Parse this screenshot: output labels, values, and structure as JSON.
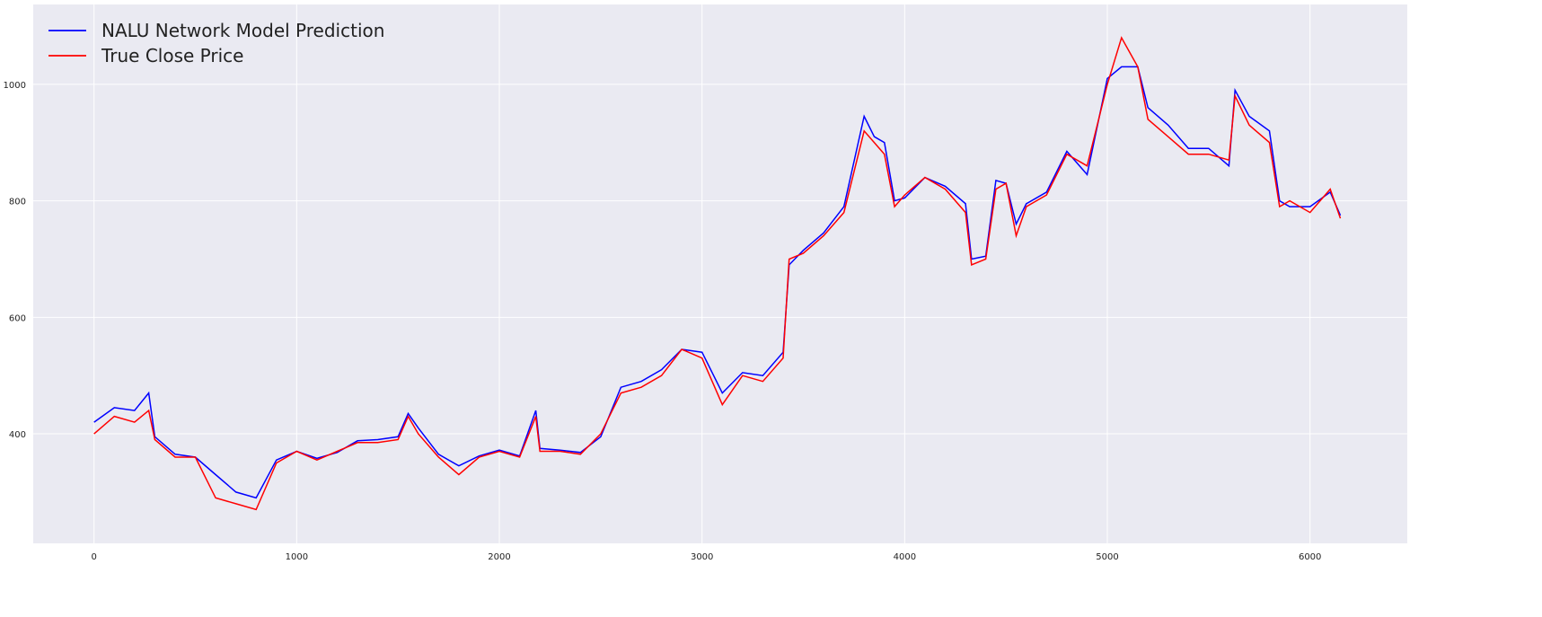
{
  "chart_data": {
    "type": "line",
    "x": [
      0,
      100,
      200,
      270,
      300,
      400,
      500,
      600,
      700,
      800,
      900,
      1000,
      1100,
      1200,
      1300,
      1400,
      1500,
      1550,
      1600,
      1700,
      1800,
      1900,
      2000,
      2100,
      2180,
      2200,
      2300,
      2400,
      2500,
      2600,
      2700,
      2800,
      2900,
      3000,
      3100,
      3200,
      3300,
      3400,
      3430,
      3500,
      3600,
      3700,
      3800,
      3850,
      3900,
      3950,
      4000,
      4100,
      4200,
      4300,
      4330,
      4400,
      4450,
      4500,
      4550,
      4600,
      4700,
      4800,
      4900,
      5000,
      5070,
      5150,
      5200,
      5300,
      5400,
      5500,
      5600,
      5630,
      5700,
      5800,
      5850,
      5900,
      6000,
      6100,
      6150
    ],
    "series": [
      {
        "name": "NALU Network Model Prediction",
        "color": "#0000ff",
        "values": [
          420,
          445,
          440,
          470,
          395,
          365,
          360,
          330,
          300,
          290,
          355,
          370,
          358,
          368,
          388,
          390,
          395,
          435,
          410,
          365,
          345,
          362,
          372,
          362,
          440,
          375,
          372,
          368,
          395,
          480,
          490,
          510,
          545,
          540,
          470,
          505,
          500,
          540,
          690,
          715,
          745,
          790,
          945,
          910,
          900,
          800,
          805,
          840,
          825,
          795,
          700,
          705,
          835,
          830,
          760,
          795,
          815,
          885,
          845,
          1010,
          1030,
          1030,
          960,
          930,
          890,
          890,
          860,
          990,
          945,
          920,
          800,
          790,
          790,
          815,
          775
        ]
      },
      {
        "name": "True Close Price",
        "color": "#ff0000",
        "values": [
          400,
          430,
          420,
          440,
          390,
          360,
          360,
          290,
          280,
          270,
          350,
          370,
          355,
          370,
          385,
          385,
          390,
          430,
          400,
          360,
          330,
          360,
          370,
          360,
          430,
          370,
          370,
          365,
          400,
          470,
          480,
          500,
          545,
          530,
          450,
          500,
          490,
          530,
          700,
          710,
          740,
          780,
          920,
          900,
          880,
          790,
          810,
          840,
          820,
          780,
          690,
          700,
          820,
          830,
          740,
          790,
          810,
          880,
          860,
          1000,
          1080,
          1030,
          940,
          910,
          880,
          880,
          870,
          980,
          930,
          900,
          790,
          800,
          780,
          820,
          770
        ]
      }
    ],
    "xlim": [
      -300,
      6480
    ],
    "ylim": [
      212,
      1137
    ],
    "xticks": [
      0,
      1000,
      2000,
      3000,
      4000,
      5000,
      6000
    ],
    "yticks": [
      400,
      600,
      800,
      1000
    ],
    "grid": true,
    "legend": "upper-left"
  }
}
